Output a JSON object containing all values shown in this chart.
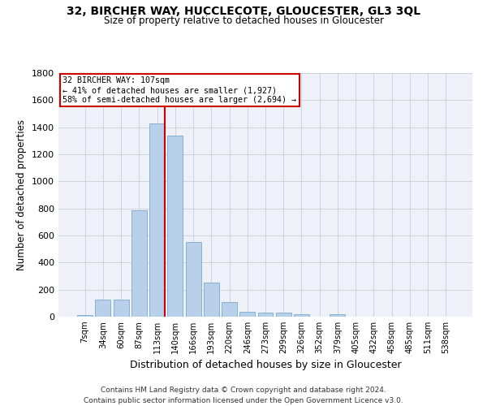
{
  "title": "32, BIRCHER WAY, HUCCLECOTE, GLOUCESTER, GL3 3QL",
  "subtitle": "Size of property relative to detached houses in Gloucester",
  "xlabel": "Distribution of detached houses by size in Gloucester",
  "ylabel": "Number of detached properties",
  "bin_labels": [
    "7sqm",
    "34sqm",
    "60sqm",
    "87sqm",
    "113sqm",
    "140sqm",
    "166sqm",
    "193sqm",
    "220sqm",
    "246sqm",
    "273sqm",
    "299sqm",
    "326sqm",
    "352sqm",
    "379sqm",
    "405sqm",
    "432sqm",
    "458sqm",
    "485sqm",
    "511sqm",
    "538sqm"
  ],
  "bar_values": [
    15,
    125,
    125,
    785,
    1430,
    1340,
    550,
    250,
    110,
    35,
    30,
    30,
    20,
    0,
    20,
    0,
    0,
    0,
    0,
    0,
    0
  ],
  "bar_color": "#b8d0ea",
  "bar_edgecolor": "#7aaad0",
  "property_bin_index": 4,
  "vline_color": "#cc0000",
  "annotation_line1": "32 BIRCHER WAY: 107sqm",
  "annotation_line2": "← 41% of detached houses are smaller (1,927)",
  "annotation_line3": "58% of semi-detached houses are larger (2,694) →",
  "annotation_box_edgecolor": "#cc0000",
  "ylim": [
    0,
    1800
  ],
  "yticks": [
    0,
    200,
    400,
    600,
    800,
    1000,
    1200,
    1400,
    1600,
    1800
  ],
  "footer_line1": "Contains HM Land Registry data © Crown copyright and database right 2024.",
  "footer_line2": "Contains public sector information licensed under the Open Government Licence v3.0.",
  "bg_color": "#eef2f8",
  "grid_color": "#c8cedd"
}
